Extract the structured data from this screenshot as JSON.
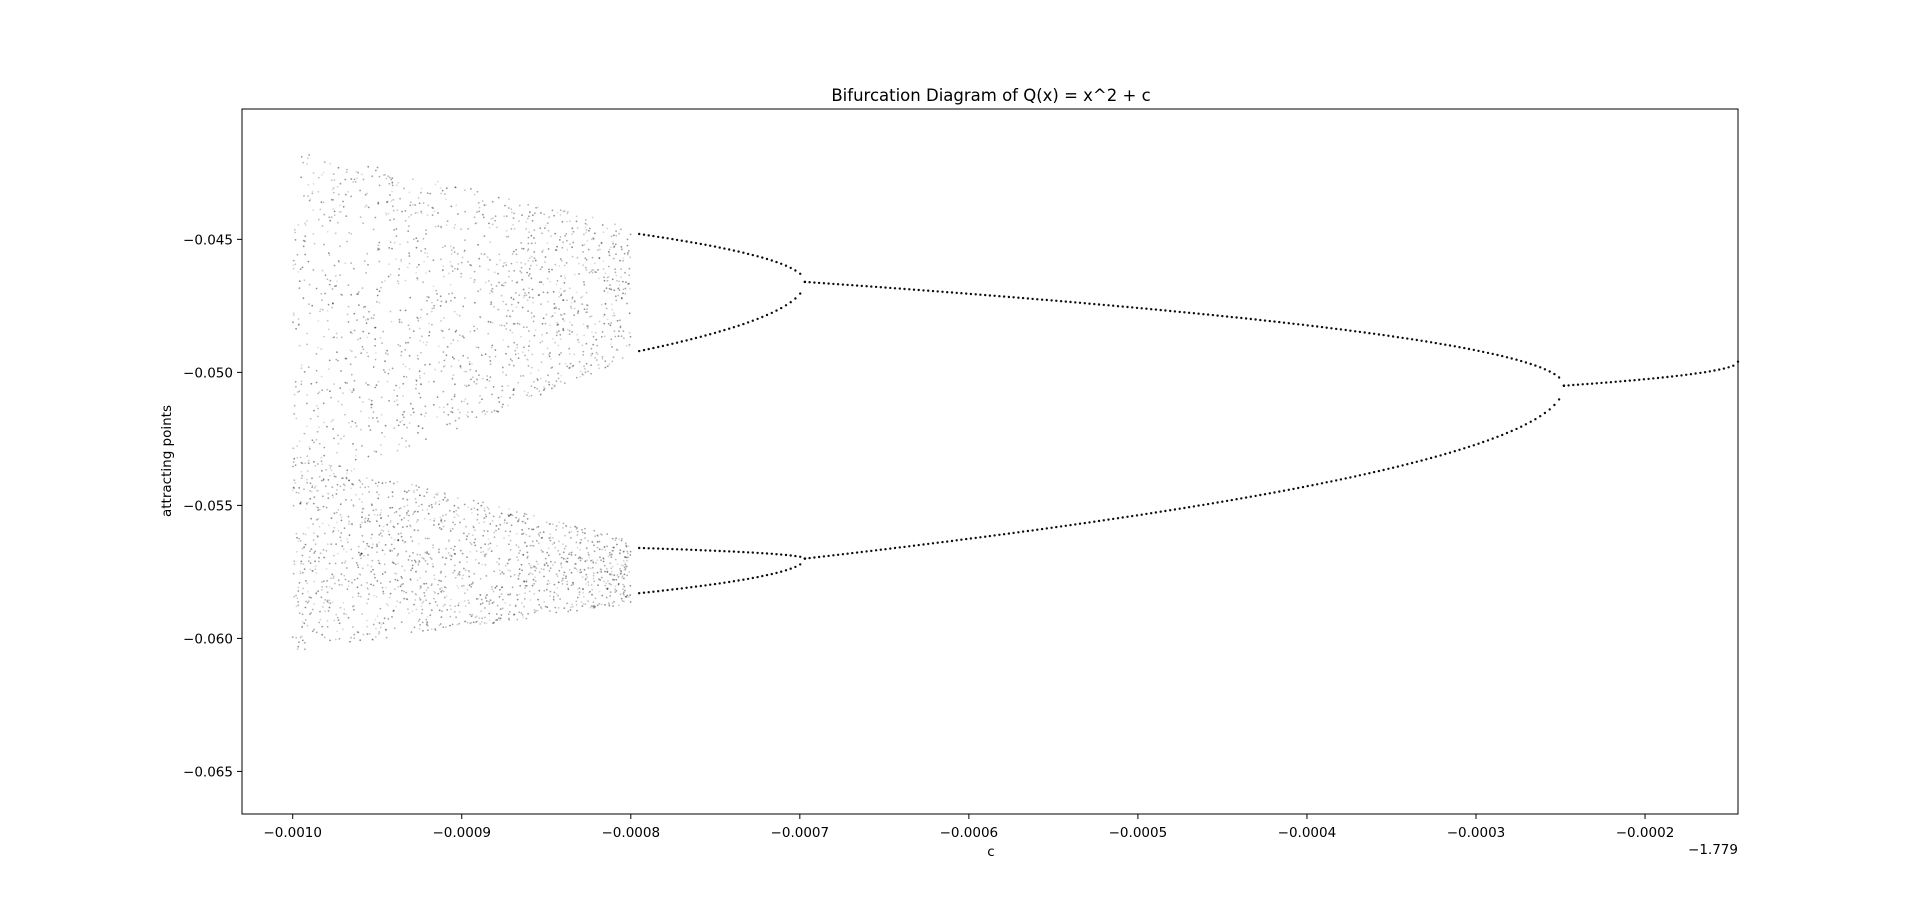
{
  "chart_data": {
    "type": "scatter",
    "title": "Bifurcation Diagram of Q(x) = x^2 + c",
    "xlabel": "c",
    "ylabel": "attracting points",
    "x_offset_label": "−1.779",
    "x_offset": -1.779,
    "xlim": [
      -0.00103,
      -0.000145
    ],
    "ylim": [
      -0.0666,
      -0.0401
    ],
    "xticks": [
      -0.001,
      -0.0009,
      -0.0008,
      -0.0007,
      -0.0006,
      -0.0005,
      -0.0004,
      -0.0003,
      -0.0002
    ],
    "xtick_labels": [
      "−0.0010",
      "−0.0009",
      "−0.0008",
      "−0.0007",
      "−0.0006",
      "−0.0005",
      "−0.0004",
      "−0.0003",
      "−0.0002"
    ],
    "yticks": [
      -0.045,
      -0.05,
      -0.055,
      -0.06,
      -0.065
    ],
    "ytick_labels": [
      "−0.045",
      "−0.050",
      "−0.055",
      "−0.060",
      "−0.065"
    ],
    "grid": false,
    "marker_color": "#000000",
    "branches": [
      {
        "name": "period-1",
        "c_range": [
          -0.000248,
          -0.000145
        ],
        "y_start": -0.0505,
        "y_end": -0.0496
      },
      {
        "name": "period-2 upper",
        "c_range": [
          -0.000697,
          -0.000248
        ],
        "y_start": -0.0466,
        "y_end": -0.0505
      },
      {
        "name": "period-2 lower",
        "c_range": [
          -0.000697,
          -0.000248
        ],
        "y_start": -0.057,
        "y_end": -0.0505
      },
      {
        "name": "period-4 branch 1",
        "c_range": [
          -0.000795,
          -0.000697
        ],
        "y_start": -0.0448,
        "y_end": -0.0466
      },
      {
        "name": "period-4 branch 2",
        "c_range": [
          -0.000795,
          -0.000697
        ],
        "y_start": -0.0492,
        "y_end": -0.0466
      },
      {
        "name": "period-4 branch 3",
        "c_range": [
          -0.000795,
          -0.000697
        ],
        "y_start": -0.0566,
        "y_end": -0.057
      },
      {
        "name": "period-4 branch 4",
        "c_range": [
          -0.000795,
          -0.000697
        ],
        "y_start": -0.0583,
        "y_end": -0.057
      }
    ],
    "chaotic_band_upper": {
      "c_range": [
        -0.001,
        -0.0008
      ],
      "top": [
        -0.0415,
        -0.0445
      ],
      "bottom": [
        -0.0546,
        -0.0495
      ]
    },
    "chaotic_band_lower": {
      "c_range": [
        -0.001,
        -0.0008
      ],
      "top": [
        -0.053,
        -0.0563
      ],
      "bottom": [
        -0.0605,
        -0.0587
      ]
    }
  }
}
